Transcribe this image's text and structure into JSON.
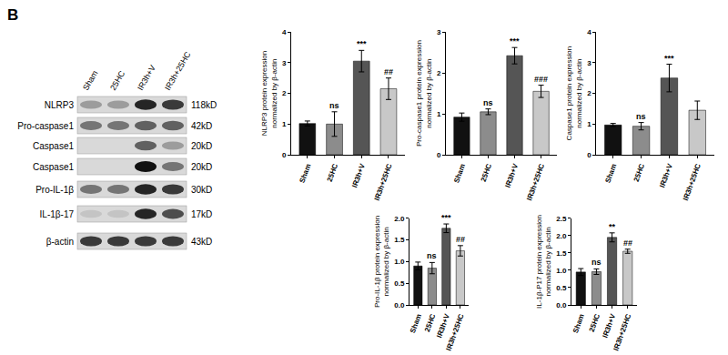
{
  "panel_label": "B",
  "blot": {
    "lanes": [
      "Sham",
      "25HC",
      "IR3h+V",
      "IR3h+25HC"
    ],
    "rows": [
      {
        "protein": "NLRP3",
        "size": "118kD"
      },
      {
        "protein": "Pro-caspase1",
        "size": "42kD"
      },
      {
        "protein": "Caspase1",
        "size": "20kD"
      },
      {
        "protein": "Caspase1",
        "size": "20kD"
      },
      {
        "protein": "Pro-IL-1β",
        "size": "30kD"
      },
      {
        "protein": "IL-1β-17",
        "size": "17kD"
      },
      {
        "protein": "β-actin",
        "size": "43kD"
      }
    ]
  },
  "chart_data": [
    {
      "type": "bar",
      "ylabel": "NLRP3 protein expression\nnormalized by β-actin",
      "categories": [
        "Sham",
        "25HC",
        "IR3h+V",
        "IR3h+25HC"
      ],
      "values": [
        1.02,
        1.0,
        3.05,
        2.15
      ],
      "errors": [
        0.08,
        0.4,
        0.35,
        0.35
      ],
      "colors": [
        "#111111",
        "#8c8c8c",
        "#555555",
        "#c8c8c8"
      ],
      "ylim": [
        0,
        4
      ],
      "yticks": [
        0,
        1,
        2,
        3,
        4
      ],
      "annotations": [
        {
          "category": "25HC",
          "text": "ns"
        },
        {
          "category": "IR3h+V",
          "text": "***"
        },
        {
          "category": "IR3h+25HC",
          "text": "##"
        }
      ]
    },
    {
      "type": "bar",
      "ylabel": "Pro-caspase1 protein expression\nnormalized by β-actin",
      "categories": [
        "Sham",
        "25HC",
        "IR3h+V",
        "IR3h+25HC"
      ],
      "values": [
        0.92,
        1.05,
        2.42,
        1.55
      ],
      "errors": [
        0.1,
        0.07,
        0.2,
        0.15
      ],
      "colors": [
        "#111111",
        "#8c8c8c",
        "#555555",
        "#c8c8c8"
      ],
      "ylim": [
        0,
        3
      ],
      "yticks": [
        0,
        1,
        2,
        3
      ],
      "annotations": [
        {
          "category": "25HC",
          "text": "ns"
        },
        {
          "category": "IR3h+V",
          "text": "***"
        },
        {
          "category": "IR3h+25HC",
          "text": "###"
        }
      ]
    },
    {
      "type": "bar",
      "ylabel": "Caspase1 protein expression\nnormalized by β-actin",
      "categories": [
        "Sham",
        "25HC",
        "IR3h+V",
        "IR3h+25HC"
      ],
      "values": [
        0.97,
        0.93,
        2.5,
        1.45
      ],
      "errors": [
        0.05,
        0.12,
        0.45,
        0.3
      ],
      "colors": [
        "#111111",
        "#8c8c8c",
        "#555555",
        "#c8c8c8"
      ],
      "ylim": [
        0,
        4
      ],
      "yticks": [
        0,
        1,
        2,
        3,
        4
      ],
      "annotations": [
        {
          "category": "25HC",
          "text": "ns"
        },
        {
          "category": "IR3h+V",
          "text": "***"
        }
      ]
    },
    {
      "type": "bar",
      "ylabel": "Pro-IL-1β protein expression\nnormalized by β-actin",
      "categories": [
        "Sham",
        "25HC",
        "IR3h+V",
        "IR3h+25HC"
      ],
      "values": [
        0.9,
        0.85,
        1.77,
        1.25
      ],
      "errors": [
        0.09,
        0.13,
        0.1,
        0.12
      ],
      "colors": [
        "#111111",
        "#8c8c8c",
        "#555555",
        "#c8c8c8"
      ],
      "ylim": [
        0,
        2
      ],
      "yticks": [
        {
          "value": 0,
          "label": "0.0"
        },
        0.5,
        {
          "value": 1,
          "label": "1.0"
        },
        1.5,
        {
          "value": 2,
          "label": "2.0"
        }
      ],
      "annotations": [
        {
          "category": "25HC",
          "text": "ns"
        },
        {
          "category": "IR3h+V",
          "text": "***"
        },
        {
          "category": "IR3h+25HC",
          "text": "##"
        }
      ]
    },
    {
      "type": "bar",
      "ylabel": "IL-1β-P17 protein expression\nnormalized by β-actin",
      "categories": [
        "Sham",
        "25HC",
        "IR3h+V",
        "IR3h+25HC"
      ],
      "values": [
        0.95,
        0.96,
        1.95,
        1.55
      ],
      "errors": [
        0.1,
        0.08,
        0.13,
        0.06
      ],
      "colors": [
        "#111111",
        "#8c8c8c",
        "#555555",
        "#c8c8c8"
      ],
      "ylim": [
        0,
        2.5
      ],
      "yticks": [
        {
          "value": 0,
          "label": "0.0"
        },
        0.5,
        {
          "value": 1,
          "label": "1.0"
        },
        1.5,
        {
          "value": 2,
          "label": "2.0"
        },
        2.5
      ],
      "annotations": [
        {
          "category": "25HC",
          "text": "ns"
        },
        {
          "category": "IR3h+V",
          "text": "**"
        },
        {
          "category": "IR3h+25HC",
          "text": "##"
        }
      ]
    }
  ]
}
